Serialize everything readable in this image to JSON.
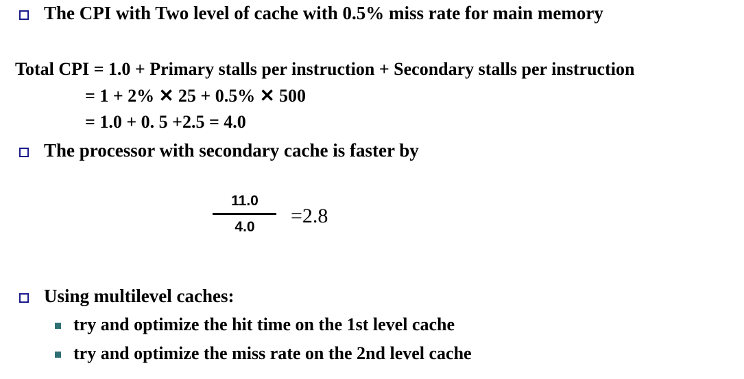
{
  "bullets": {
    "b1": "The CPI with Two level of cache with 0.5% miss rate for main memory",
    "b2": "The processor with secondary cache is faster by",
    "b3": "Using multilevel caches:"
  },
  "equation": {
    "line1": "Total CPI = 1.0 + Primary stalls per instruction +  Secondary stalls per instruction",
    "line2": "= 1 + 2% ✕ 25 + 0.5% ✕ 500",
    "line3": "= 1.0 + 0. 5 +2.5  = 4.0"
  },
  "fraction": {
    "numerator": "11.0",
    "denominator": "4.0",
    "result": "=2.8"
  },
  "subbullets": [
    "try and optimize the hit time on the 1st level cache",
    "try and optimize the miss rate on the 2nd level cache"
  ],
  "colors": {
    "bullet_outline": "#1a1a8c",
    "subbullet_fill": "#2e6f74"
  }
}
